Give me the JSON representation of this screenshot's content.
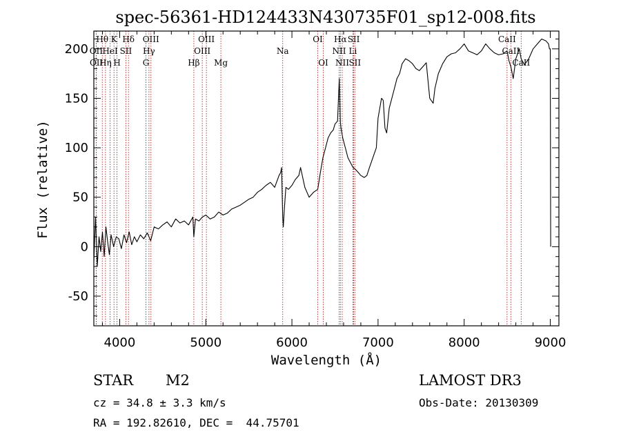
{
  "chart_data": {
    "type": "line",
    "title": "spec-56361-HD124433N430735F01_sp12-008.fits",
    "xlabel": "Wavelength (Å)",
    "ylabel": "Flux (relative)",
    "xlim": [
      3700,
      9100
    ],
    "ylim": [
      -80,
      218
    ],
    "xticks": [
      4000,
      5000,
      6000,
      7000,
      8000,
      9000
    ],
    "yticks": [
      -50,
      0,
      50,
      100,
      150,
      200
    ],
    "series": [
      {
        "name": "flux",
        "x": [
          3700,
          3720,
          3740,
          3760,
          3780,
          3800,
          3820,
          3840,
          3860,
          3880,
          3900,
          3930,
          3960,
          3990,
          4020,
          4050,
          4080,
          4110,
          4140,
          4170,
          4200,
          4240,
          4280,
          4320,
          4360,
          4400,
          4450,
          4500,
          4550,
          4600,
          4650,
          4700,
          4750,
          4800,
          4850,
          4861,
          4880,
          4920,
          4960,
          5000,
          5050,
          5100,
          5150,
          5200,
          5250,
          5300,
          5350,
          5400,
          5450,
          5500,
          5550,
          5600,
          5650,
          5700,
          5750,
          5800,
          5850,
          5870,
          5880,
          5893,
          5900,
          5910,
          5930,
          5960,
          6000,
          6040,
          6080,
          6100,
          6150,
          6200,
          6250,
          6300,
          6330,
          6360,
          6390,
          6420,
          6450,
          6480,
          6500,
          6530,
          6550,
          6563,
          6570,
          6590,
          6620,
          6650,
          6680,
          6710,
          6740,
          6770,
          6800,
          6840,
          6870,
          6900,
          6940,
          6980,
          7000,
          7020,
          7040,
          7060,
          7080,
          7100,
          7130,
          7160,
          7190,
          7220,
          7250,
          7280,
          7320,
          7360,
          7400,
          7440,
          7480,
          7520,
          7560,
          7600,
          7640,
          7660,
          7700,
          7750,
          7800,
          7850,
          7900,
          7950,
          8000,
          8050,
          8100,
          8150,
          8200,
          8250,
          8300,
          8350,
          8400,
          8450,
          8498,
          8520,
          8542,
          8570,
          8600,
          8640,
          8662,
          8700,
          8750,
          8800,
          8850,
          8900,
          8950,
          8980,
          8990,
          9000,
          9005
        ],
        "y": [
          -15,
          30,
          -20,
          10,
          -5,
          15,
          -10,
          20,
          5,
          -8,
          12,
          0,
          10,
          8,
          -2,
          12,
          4,
          15,
          2,
          10,
          5,
          12,
          8,
          14,
          6,
          20,
          18,
          22,
          25,
          20,
          28,
          24,
          26,
          22,
          30,
          10,
          28,
          26,
          30,
          32,
          28,
          30,
          35,
          32,
          34,
          38,
          40,
          42,
          45,
          48,
          50,
          55,
          58,
          62,
          65,
          60,
          72,
          75,
          80,
          30,
          20,
          35,
          60,
          58,
          62,
          68,
          72,
          80,
          60,
          50,
          55,
          58,
          75,
          90,
          100,
          110,
          115,
          118,
          124,
          127,
          170,
          126,
          120,
          110,
          100,
          90,
          85,
          80,
          78,
          75,
          72,
          70,
          72,
          80,
          90,
          100,
          130,
          140,
          150,
          148,
          120,
          115,
          140,
          150,
          160,
          170,
          175,
          185,
          190,
          188,
          185,
          180,
          178,
          182,
          186,
          150,
          145,
          160,
          175,
          185,
          192,
          195,
          196,
          200,
          205,
          198,
          196,
          194,
          198,
          205,
          200,
          196,
          194,
          195,
          198,
          188,
          182,
          170,
          190,
          200,
          190,
          184,
          190,
          200,
          205,
          210,
          208,
          205,
          200,
          200,
          0
        ],
        "stroke": "#000000"
      }
    ],
    "lines": [
      {
        "label": "Hθ",
        "x": 3798,
        "row": 1,
        "color": "#b22222"
      },
      {
        "label": "K",
        "x": 3934,
        "row": 1,
        "color": "#b22222"
      },
      {
        "label": "Hδ",
        "x": 4102,
        "row": 1,
        "color": "#b22222"
      },
      {
        "label": "OIII",
        "x": 4363,
        "row": 1,
        "color": "#b22222"
      },
      {
        "label": "OIII",
        "x": 5007,
        "row": 1,
        "color": "#b22222"
      },
      {
        "label": "OI",
        "x": 6300,
        "row": 1,
        "color": "#b22222"
      },
      {
        "label": "Hα",
        "x": 6563,
        "row": 1,
        "color": "#b22222"
      },
      {
        "label": "SII",
        "x": 6717,
        "row": 1,
        "color": "#b22222"
      },
      {
        "label": "CaII",
        "x": 8498,
        "row": 1,
        "color": "#b22222"
      },
      {
        "label": "OII",
        "x": 3727,
        "row": 2,
        "color": "#b22222"
      },
      {
        "label": "HeI",
        "x": 3889,
        "row": 2,
        "color": "#b22222"
      },
      {
        "label": "SII",
        "x": 4072,
        "row": 2,
        "color": "#b22222"
      },
      {
        "label": "Hγ",
        "x": 4340,
        "row": 2,
        "color": "#b22222"
      },
      {
        "label": "OIII",
        "x": 4959,
        "row": 2,
        "color": "#b22222"
      },
      {
        "label": "Na",
        "x": 5893,
        "row": 2,
        "color": "#b22222"
      },
      {
        "label": "NII",
        "x": 6548,
        "row": 2,
        "color": "#b22222"
      },
      {
        "label": "Li",
        "x": 6708,
        "row": 2,
        "color": "#b22222"
      },
      {
        "label": "CaII",
        "x": 8542,
        "row": 2,
        "color": "#b22222"
      },
      {
        "label": "OII",
        "x": 3729,
        "row": 3,
        "color": "#b22222"
      },
      {
        "label": "Hη",
        "x": 3835,
        "row": 3,
        "color": "#b22222"
      },
      {
        "label": "H",
        "x": 3969,
        "row": 3,
        "color": "#b22222"
      },
      {
        "label": "G",
        "x": 4305,
        "row": 3,
        "color": "#b22222"
      },
      {
        "label": "Hβ",
        "x": 4861,
        "row": 3,
        "color": "#b22222"
      },
      {
        "label": "Mg",
        "x": 5175,
        "row": 3,
        "color": "#b22222"
      },
      {
        "label": "OI",
        "x": 6364,
        "row": 3,
        "color": "#b22222"
      },
      {
        "label": "NII",
        "x": 6584,
        "row": 3,
        "color": "#b22222"
      },
      {
        "label": "SII",
        "x": 6731,
        "row": 3,
        "color": "#b22222"
      },
      {
        "label": "CaII",
        "x": 8662,
        "row": 3,
        "color": "#b22222"
      }
    ]
  },
  "info": {
    "object_class": "STAR",
    "subclass": "M2",
    "survey": "LAMOST DR3",
    "cz": "cz = 34.8 ± 3.3 km/s",
    "obs_date": "Obs-Date: 20130309",
    "coords": "RA = 192.82610, DEC =  44.75701"
  }
}
